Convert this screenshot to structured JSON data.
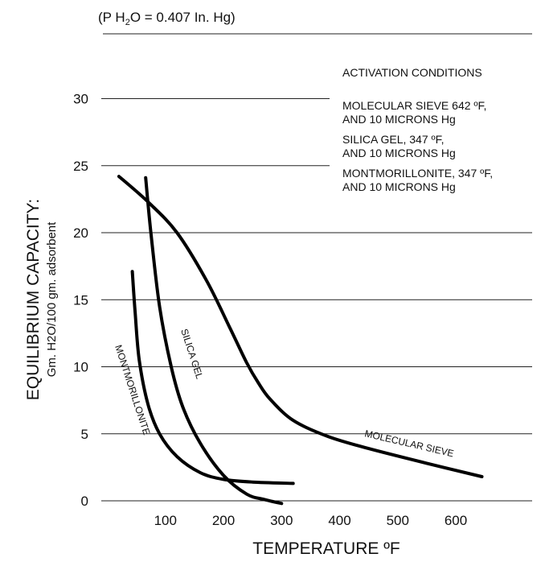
{
  "chart_data": {
    "type": "line",
    "subtitle": "(P H₂O = 0.407 In. Hg)",
    "xlabel": "TEMPERATURE ºF",
    "ylabel": "EQUILIBRIUM CAPACITY:",
    "ylabel_units": "Gm. H2O/100 gm. adsorbent",
    "xlim": [
      0,
      700
    ],
    "ylim": [
      0,
      30
    ],
    "x_ticks": [
      100,
      200,
      300,
      400,
      500,
      600
    ],
    "y_ticks": [
      0,
      5,
      10,
      15,
      20,
      25,
      30
    ],
    "grid": "horizontal",
    "legend_title": "ACTIVATION CONDITIONS",
    "legend_entries": [
      [
        "MOLECULAR SIEVE 642 ºF,",
        "AND 10 MICRONS Hg"
      ],
      [
        "SILICA GEL, 347 ºF,",
        "AND 10 MICRONS Hg"
      ],
      [
        "MONTMORILLONITE, 347 ºF,",
        "AND 10 MICRONS Hg"
      ]
    ],
    "series": [
      {
        "name": "MOLECULAR SIEVE",
        "x": [
          20,
          70,
          120,
          170,
          210,
          240,
          260,
          280,
          320,
          380,
          450,
          550,
          645
        ],
        "y": [
          24.2,
          22.3,
          20.0,
          16.5,
          13.0,
          10.3,
          8.8,
          7.6,
          6.0,
          4.8,
          3.9,
          2.8,
          1.8
        ]
      },
      {
        "name": "SILICA GEL",
        "x": [
          66,
          75,
          90,
          110,
          130,
          160,
          200,
          240,
          270,
          300
        ],
        "y": [
          24.1,
          20.0,
          14.5,
          10.0,
          7.0,
          4.3,
          1.9,
          0.5,
          0.1,
          -0.2
        ]
      },
      {
        "name": "MONTMORILLONITE",
        "x": [
          43,
          48,
          55,
          70,
          90,
          120,
          160,
          200,
          250,
          320
        ],
        "y": [
          17.1,
          14.0,
          10.5,
          7.2,
          5.0,
          3.3,
          2.1,
          1.6,
          1.4,
          1.3
        ]
      }
    ]
  }
}
